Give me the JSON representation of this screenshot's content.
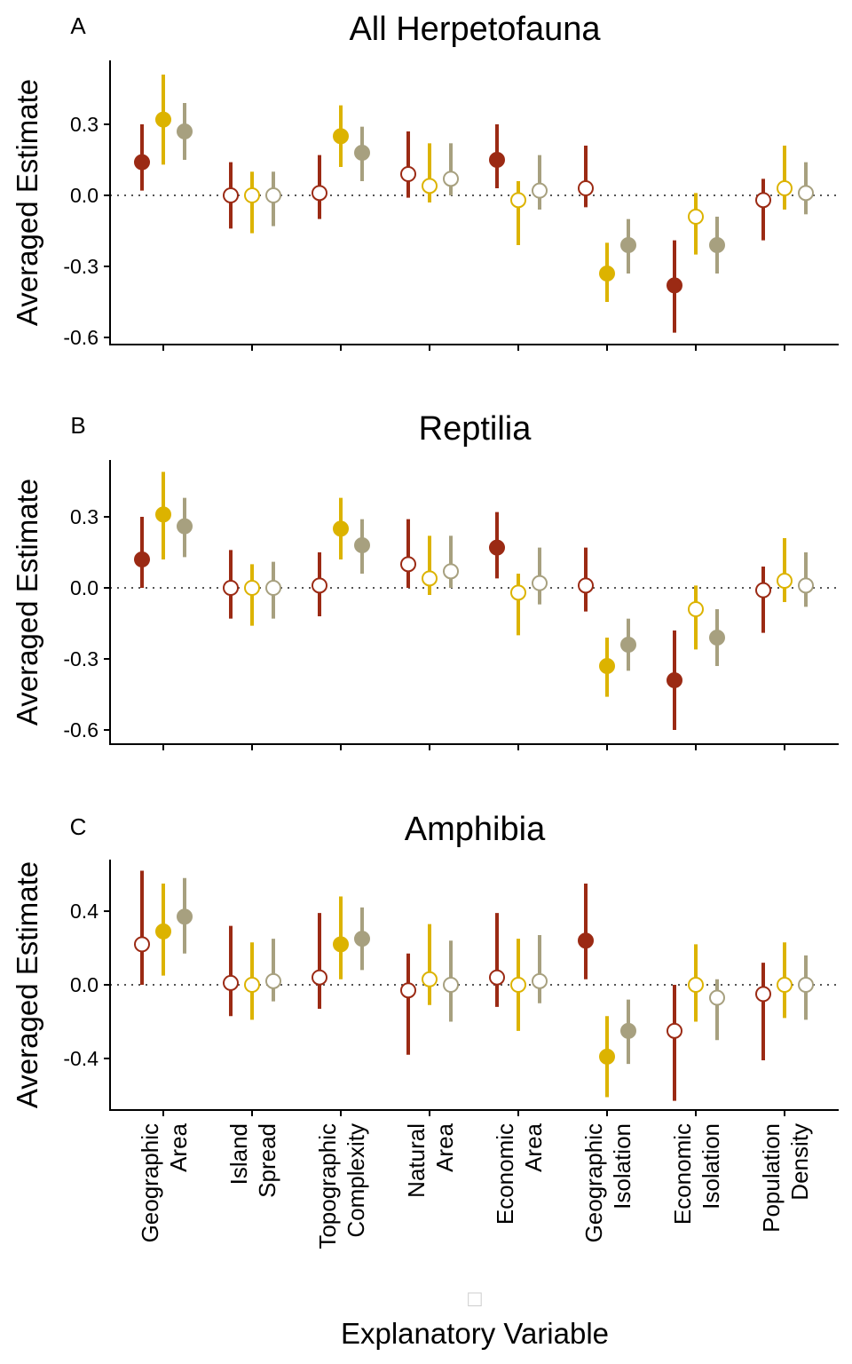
{
  "colors": {
    "series1": "#9b2a14",
    "series2": "#dcb300",
    "series3": "#a7a07f",
    "axis": "#000000",
    "zero_line": "#555555"
  },
  "x_axis_label": "Explanatory Variable",
  "x_axis_glyph": "□",
  "chart_data": [
    {
      "type": "scatter",
      "panel": "A",
      "title": "All Herpetofauna",
      "ylabel": "Averaged Estimate",
      "ylim": [
        -0.63,
        0.57
      ],
      "yticks": [
        0.3,
        0.0,
        -0.3,
        -0.6
      ],
      "ytick_labels": [
        "0.3",
        "0.0",
        "-0.3",
        "-0.6"
      ],
      "zero_reference_line": true,
      "categories": [
        "Geographic Area",
        "Island Spread",
        "Topographic Complexity",
        "Natural Area",
        "Economic Area",
        "Geographic Isolation",
        "Economic Isolation",
        "Population Density"
      ],
      "series": [
        {
          "estimate": [
            0.14,
            0.0,
            0.01,
            0.09,
            0.15,
            0.03,
            -0.38,
            -0.02
          ],
          "lower": [
            0.02,
            -0.14,
            -0.1,
            -0.01,
            0.03,
            -0.05,
            -0.58,
            -0.19
          ],
          "upper": [
            0.3,
            0.14,
            0.17,
            0.27,
            0.3,
            0.21,
            -0.19,
            0.07
          ],
          "filled": [
            true,
            false,
            false,
            false,
            true,
            false,
            true,
            false
          ]
        },
        {
          "estimate": [
            0.32,
            0.0,
            0.25,
            0.04,
            -0.02,
            -0.33,
            -0.09,
            0.03
          ],
          "lower": [
            0.13,
            -0.16,
            0.12,
            -0.03,
            -0.21,
            -0.45,
            -0.25,
            -0.06
          ],
          "upper": [
            0.51,
            0.1,
            0.38,
            0.22,
            0.06,
            -0.2,
            0.01,
            0.21
          ],
          "filled": [
            true,
            false,
            true,
            false,
            false,
            true,
            false,
            false
          ]
        },
        {
          "estimate": [
            0.27,
            0.0,
            0.18,
            0.07,
            0.02,
            -0.21,
            -0.21,
            0.01
          ],
          "lower": [
            0.15,
            -0.13,
            0.06,
            0.0,
            -0.06,
            -0.33,
            -0.33,
            -0.08
          ],
          "upper": [
            0.39,
            0.1,
            0.29,
            0.22,
            0.17,
            -0.1,
            -0.09,
            0.14
          ],
          "filled": [
            true,
            false,
            true,
            false,
            false,
            true,
            true,
            false
          ]
        }
      ]
    },
    {
      "type": "scatter",
      "panel": "B",
      "title": "Reptilia",
      "ylabel": "Averaged Estimate",
      "ylim": [
        -0.66,
        0.54
      ],
      "yticks": [
        0.3,
        0.0,
        -0.3,
        -0.6
      ],
      "ytick_labels": [
        "0.3",
        "0.0",
        "-0.3",
        "-0.6"
      ],
      "zero_reference_line": true,
      "categories": [
        "Geographic Area",
        "Island Spread",
        "Topographic Complexity",
        "Natural Area",
        "Economic Area",
        "Geographic Isolation",
        "Economic Isolation",
        "Population Density"
      ],
      "series": [
        {
          "estimate": [
            0.12,
            0.0,
            0.01,
            0.1,
            0.17,
            0.01,
            -0.39,
            -0.01
          ],
          "lower": [
            0.0,
            -0.13,
            -0.12,
            0.0,
            0.04,
            -0.1,
            -0.6,
            -0.19
          ],
          "upper": [
            0.3,
            0.16,
            0.15,
            0.29,
            0.32,
            0.17,
            -0.18,
            0.09
          ],
          "filled": [
            true,
            false,
            false,
            false,
            true,
            false,
            true,
            false
          ]
        },
        {
          "estimate": [
            0.31,
            0.0,
            0.25,
            0.04,
            -0.02,
            -0.33,
            -0.09,
            0.03
          ],
          "lower": [
            0.12,
            -0.16,
            0.12,
            -0.03,
            -0.2,
            -0.46,
            -0.26,
            -0.06
          ],
          "upper": [
            0.49,
            0.1,
            0.38,
            0.22,
            0.06,
            -0.21,
            0.01,
            0.21
          ],
          "filled": [
            true,
            false,
            true,
            false,
            false,
            true,
            false,
            false
          ]
        },
        {
          "estimate": [
            0.26,
            0.0,
            0.18,
            0.07,
            0.02,
            -0.24,
            -0.21,
            0.01
          ],
          "lower": [
            0.13,
            -0.13,
            0.06,
            0.0,
            -0.07,
            -0.35,
            -0.33,
            -0.08
          ],
          "upper": [
            0.38,
            0.11,
            0.29,
            0.22,
            0.17,
            -0.13,
            -0.09,
            0.15
          ],
          "filled": [
            true,
            false,
            true,
            false,
            false,
            true,
            true,
            false
          ]
        }
      ]
    },
    {
      "type": "scatter",
      "panel": "C",
      "title": "Amphibia",
      "ylabel": "Averaged Estimate",
      "ylim": [
        -0.68,
        0.68
      ],
      "yticks": [
        0.4,
        0.0,
        -0.4
      ],
      "ytick_labels": [
        "0.4",
        "0.0",
        "-0.4"
      ],
      "zero_reference_line": true,
      "categories": [
        "Geographic Area",
        "Island Spread",
        "Topographic Complexity",
        "Natural Area",
        "Economic Area",
        "Geographic Isolation",
        "Economic Isolation",
        "Population Density"
      ],
      "series": [
        {
          "estimate": [
            0.22,
            0.01,
            0.04,
            -0.03,
            0.04,
            0.24,
            -0.25,
            -0.05
          ],
          "lower": [
            0.0,
            -0.17,
            -0.13,
            -0.38,
            -0.12,
            0.03,
            -0.63,
            -0.41
          ],
          "upper": [
            0.62,
            0.32,
            0.39,
            0.17,
            0.39,
            0.55,
            0.0,
            0.12
          ],
          "filled": [
            false,
            false,
            false,
            false,
            false,
            true,
            false,
            false
          ]
        },
        {
          "estimate": [
            0.29,
            0.0,
            0.22,
            0.03,
            0.0,
            -0.39,
            0.0,
            0.0
          ],
          "lower": [
            0.05,
            -0.19,
            0.03,
            -0.11,
            -0.25,
            -0.61,
            -0.2,
            -0.18
          ],
          "upper": [
            0.55,
            0.23,
            0.48,
            0.33,
            0.25,
            -0.17,
            0.22,
            0.23
          ],
          "filled": [
            true,
            false,
            true,
            false,
            false,
            true,
            false,
            false
          ]
        },
        {
          "estimate": [
            0.37,
            0.02,
            0.25,
            0.0,
            0.02,
            -0.25,
            -0.07,
            0.0
          ],
          "lower": [
            0.17,
            -0.09,
            0.08,
            -0.2,
            -0.1,
            -0.43,
            -0.3,
            -0.19
          ],
          "upper": [
            0.58,
            0.25,
            0.42,
            0.24,
            0.27,
            -0.08,
            0.03,
            0.16
          ],
          "filled": [
            true,
            false,
            true,
            false,
            false,
            true,
            false,
            false
          ]
        }
      ]
    }
  ],
  "x_tick_labels": [
    [
      "Geographic",
      "Area"
    ],
    [
      "Island",
      "Spread"
    ],
    [
      "Topographic",
      "Complexity"
    ],
    [
      "Natural",
      "Area"
    ],
    [
      "Economic",
      "Area"
    ],
    [
      "Geographic",
      "Isolation"
    ],
    [
      "Economic",
      "Isolation"
    ],
    [
      "Population",
      "Density"
    ]
  ]
}
